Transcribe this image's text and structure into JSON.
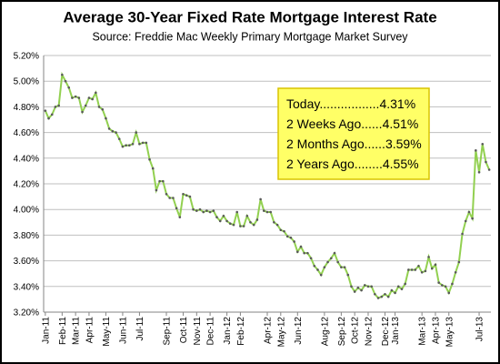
{
  "chart_data": {
    "type": "line",
    "title": "Average 30-Year Fixed Rate Mortgage Interest Rate",
    "subtitle": "Source:  Freddie  Mac Weekly  Primary  Mortgage Market Survey",
    "annotations": [
      "Today.................4.31%",
      "2 Weeks Ago......4.51%",
      "2 Months Ago......3.59%",
      "2 Years Ago........4.55%"
    ],
    "categories": [
      "Jan-11",
      null,
      null,
      null,
      null,
      "Feb-11",
      null,
      null,
      null,
      "Mar-11",
      null,
      null,
      null,
      "Apr-11",
      null,
      null,
      null,
      null,
      "May-11",
      null,
      null,
      null,
      null,
      "Jun-11",
      null,
      null,
      null,
      null,
      "Jul-11",
      null,
      null,
      null,
      null,
      null,
      null,
      null,
      "Sep-11",
      null,
      null,
      null,
      null,
      "Oct-11",
      null,
      null,
      null,
      "Nov-11",
      null,
      null,
      null,
      "Dec-11",
      null,
      null,
      null,
      null,
      "Jan-12",
      null,
      null,
      null,
      "Feb-12",
      null,
      null,
      null,
      null,
      null,
      null,
      null,
      "Apr-12",
      null,
      null,
      null,
      "May-12",
      null,
      null,
      null,
      null,
      "Jun-12",
      null,
      null,
      null,
      null,
      null,
      null,
      null,
      "Aug-12",
      null,
      null,
      null,
      null,
      "Sep-12",
      null,
      null,
      null,
      "Oct-12",
      null,
      null,
      null,
      "Nov-12",
      null,
      null,
      null,
      null,
      "Dec-12",
      null,
      null,
      "Jan-13",
      null,
      null,
      null,
      null,
      null,
      null,
      null,
      "Mar-13",
      null,
      null,
      null,
      "Apr-13",
      null,
      null,
      null,
      "May-13",
      null,
      null,
      null,
      null,
      null,
      null,
      null,
      null,
      "Jul-13",
      null,
      null,
      null
    ],
    "series": [
      {
        "name": "30-Year Fixed Rate",
        "color": "#92d050",
        "marker_color": "#595959",
        "values": [
          4.77,
          4.71,
          4.74,
          4.8,
          4.81,
          5.05,
          5.0,
          4.95,
          4.87,
          4.88,
          4.87,
          4.76,
          4.81,
          4.87,
          4.86,
          4.91,
          4.8,
          4.78,
          4.71,
          4.63,
          4.61,
          4.6,
          4.55,
          4.49,
          4.5,
          4.5,
          4.51,
          4.6,
          4.51,
          4.52,
          4.52,
          4.39,
          4.32,
          4.15,
          4.22,
          4.22,
          4.12,
          4.09,
          4.09,
          4.01,
          3.94,
          4.12,
          4.11,
          4.1,
          4.0,
          3.99,
          4.0,
          3.98,
          3.99,
          3.98,
          3.99,
          3.94,
          3.91,
          3.95,
          3.91,
          3.89,
          3.88,
          3.98,
          3.87,
          3.87,
          3.95,
          3.9,
          3.88,
          3.92,
          4.08,
          3.99,
          3.98,
          3.98,
          3.9,
          3.88,
          3.84,
          3.83,
          3.79,
          3.78,
          3.75,
          3.67,
          3.71,
          3.66,
          3.66,
          3.62,
          3.56,
          3.53,
          3.49,
          3.55,
          3.59,
          3.62,
          3.66,
          3.59,
          3.55,
          3.55,
          3.49,
          3.4,
          3.36,
          3.39,
          3.37,
          3.41,
          3.4,
          3.4,
          3.34,
          3.31,
          3.32,
          3.34,
          3.32,
          3.37,
          3.35,
          3.4,
          3.38,
          3.42,
          3.53,
          3.53,
          3.53,
          3.56,
          3.51,
          3.52,
          3.63,
          3.54,
          3.57,
          3.43,
          3.41,
          3.4,
          3.35,
          3.42,
          3.51,
          3.59,
          3.81,
          3.91,
          3.98,
          3.93,
          4.46,
          4.29,
          4.51,
          4.37,
          4.31
        ]
      }
    ],
    "ylim": [
      3.2,
      5.2
    ],
    "yticks": [
      {
        "value": 3.2,
        "label": "3.20%"
      },
      {
        "value": 3.4,
        "label": "3.40%"
      },
      {
        "value": 3.6,
        "label": "3.60%"
      },
      {
        "value": 3.8,
        "label": "3.80%"
      },
      {
        "value": 4.0,
        "label": "4.00%"
      },
      {
        "value": 4.2,
        "label": "4.20%"
      },
      {
        "value": 4.4,
        "label": "4.40%"
      },
      {
        "value": 4.6,
        "label": "4.60%"
      },
      {
        "value": 4.8,
        "label": "4.80%"
      },
      {
        "value": 5.0,
        "label": "5.00%"
      },
      {
        "value": 5.2,
        "label": "5.20%"
      }
    ],
    "grid": true
  }
}
